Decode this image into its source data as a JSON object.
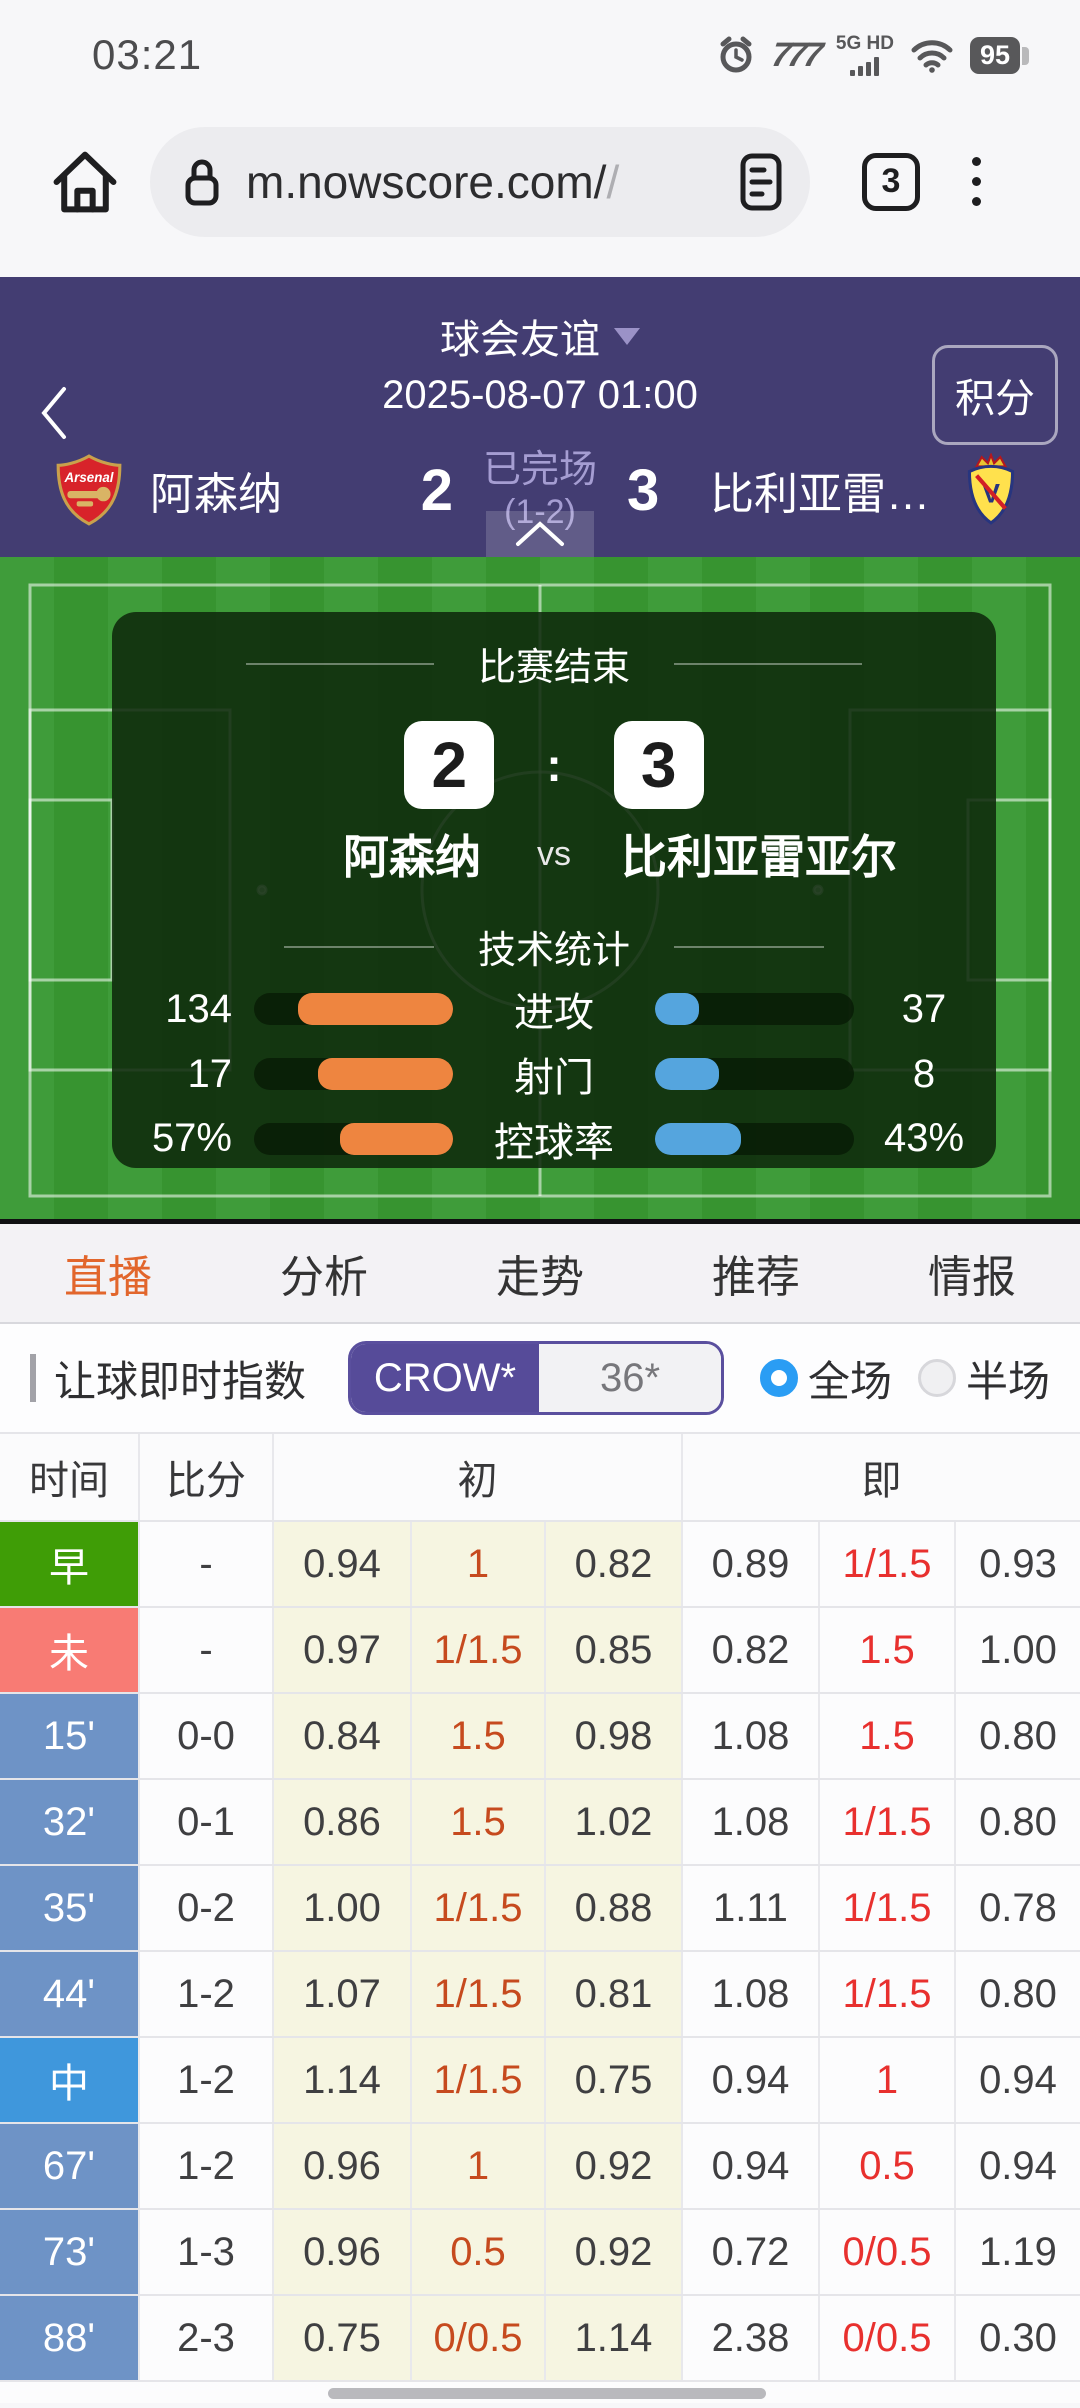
{
  "status_bar": {
    "time": "03:21",
    "network_label": "5G HD",
    "battery": "95"
  },
  "browser": {
    "url": "m.nowscore.com/",
    "url_fade": "/",
    "tab_count": "3"
  },
  "match_header": {
    "league": "球会友谊",
    "datetime": "2025-08-07 01:00",
    "points_label": "积分",
    "home_team": "阿森纳",
    "away_team": "比利亚雷…",
    "home_score": "2",
    "away_score": "3",
    "status": "已完场",
    "half_score": "(1-2)"
  },
  "scoreboard": {
    "result_title": "比赛结束",
    "home_score": "2",
    "away_score": "3",
    "home_team": "阿森纳",
    "vs_label": "vs",
    "away_team": "比利亚雷亚尔",
    "stats_title": "技术统计",
    "home_color": "#ee8540",
    "away_color": "#55a5de"
  },
  "stats": [
    {
      "label": "进攻",
      "home": "134",
      "away": "37",
      "home_pct": 78,
      "away_pct": 22
    },
    {
      "label": "射门",
      "home": "17",
      "away": "8",
      "home_pct": 68,
      "away_pct": 32
    },
    {
      "label": "控球率",
      "home": "57%",
      "away": "43%",
      "home_pct": 57,
      "away_pct": 43
    }
  ],
  "tabs": [
    {
      "label": "直播",
      "active": true
    },
    {
      "label": "分析",
      "active": false
    },
    {
      "label": "走势",
      "active": false
    },
    {
      "label": "推荐",
      "active": false
    },
    {
      "label": "情报",
      "active": false
    }
  ],
  "index_bar": {
    "title": "让球即时指数",
    "bookmaker": "CROW*",
    "alt_count": "36*",
    "full_label": "全场",
    "half_label": "半场",
    "full_selected": true
  },
  "odds_table": {
    "headers": {
      "time": "时间",
      "score": "比分",
      "initial": "初",
      "live": "即"
    },
    "rows": [
      {
        "time": "早",
        "type": "early",
        "score": "-",
        "initial": [
          "0.94",
          "1",
          "0.82"
        ],
        "live": [
          "0.89",
          "1/1.5",
          "0.93"
        ]
      },
      {
        "time": "未",
        "type": "pre",
        "score": "-",
        "initial": [
          "0.97",
          "1/1.5",
          "0.85"
        ],
        "live": [
          "0.82",
          "1.5",
          "1.00"
        ]
      },
      {
        "time": "15'",
        "type": "min",
        "score": "0-0",
        "initial": [
          "0.84",
          "1.5",
          "0.98"
        ],
        "live": [
          "1.08",
          "1.5",
          "0.80"
        ]
      },
      {
        "time": "32'",
        "type": "min",
        "score": "0-1",
        "initial": [
          "0.86",
          "1.5",
          "1.02"
        ],
        "live": [
          "1.08",
          "1/1.5",
          "0.80"
        ]
      },
      {
        "time": "35'",
        "type": "min",
        "score": "0-2",
        "initial": [
          "1.00",
          "1/1.5",
          "0.88"
        ],
        "live": [
          "1.11",
          "1/1.5",
          "0.78"
        ]
      },
      {
        "time": "44'",
        "type": "min",
        "score": "1-2",
        "initial": [
          "1.07",
          "1/1.5",
          "0.81"
        ],
        "live": [
          "1.08",
          "1/1.5",
          "0.80"
        ]
      },
      {
        "time": "中",
        "type": "half",
        "score": "1-2",
        "initial": [
          "1.14",
          "1/1.5",
          "0.75"
        ],
        "live": [
          "0.94",
          "1",
          "0.94"
        ]
      },
      {
        "time": "67'",
        "type": "min",
        "score": "1-2",
        "initial": [
          "0.96",
          "1",
          "0.92"
        ],
        "live": [
          "0.94",
          "0.5",
          "0.94"
        ]
      },
      {
        "time": "73'",
        "type": "min",
        "score": "1-3",
        "initial": [
          "0.96",
          "0.5",
          "0.92"
        ],
        "live": [
          "0.72",
          "0/0.5",
          "1.19"
        ]
      },
      {
        "time": "88'",
        "type": "min",
        "score": "2-3",
        "initial": [
          "0.75",
          "0/0.5",
          "1.14"
        ],
        "live": [
          "2.38",
          "0/0.5",
          "0.30"
        ]
      }
    ]
  }
}
